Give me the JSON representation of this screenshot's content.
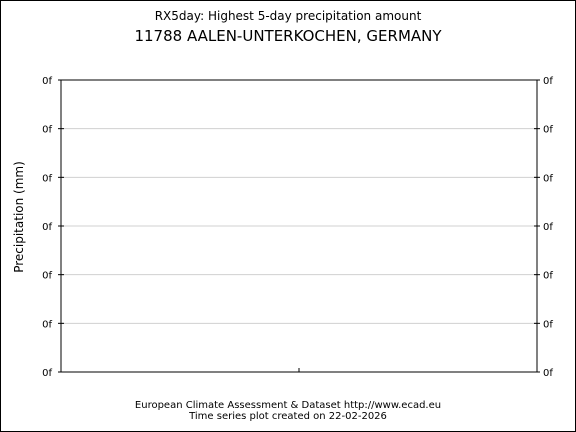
{
  "header": {
    "title_line1": "RX5day: Highest 5-day precipitation amount",
    "title_line2": "11788 AALEN-UNTERKOCHEN, GERMANY"
  },
  "footer": {
    "line1": "European Climate Assessment & Dataset  http://www.ecad.eu",
    "line2": "Time series plot created on 22-02-2026"
  },
  "colors": {
    "axis": "#000000",
    "grid": "#d0d0d0",
    "background": "#ffffff"
  },
  "chart_data": {
    "type": "line",
    "title": "RX5day: Highest 5-day precipitation amount",
    "subtitle": "11788 AALEN-UNTERKOCHEN, GERMANY",
    "ylabel": "Precipitation (mm)",
    "xlabel": "",
    "y_tick_labels": [
      "0f",
      "0f",
      "0f",
      "0f",
      "0f",
      "0f",
      "0f"
    ],
    "x_tick_labels": [],
    "series": [],
    "grid": true,
    "legend": "none"
  }
}
